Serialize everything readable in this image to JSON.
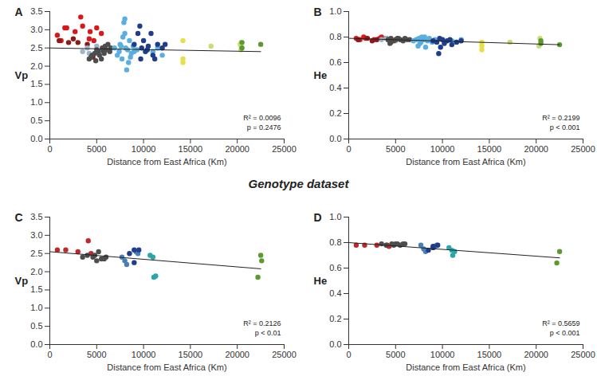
{
  "heading": "Genotype dataset",
  "chart_data": [
    {
      "type": "scatter",
      "title": "A",
      "xlabel": "Distance from East Africa (Km)",
      "ylabel": "Vp",
      "xlim": [
        0,
        25000
      ],
      "xticks": [
        0,
        5000,
        10000,
        15000,
        20000,
        25000
      ],
      "ylim": [
        0,
        3.5
      ],
      "yticks": [
        {
          "value": 0,
          "label": "0.0"
        },
        0.5,
        {
          "value": 1,
          "label": "1.0"
        },
        1.5,
        {
          "value": 2,
          "label": "2.0"
        },
        2.5,
        {
          "value": 3,
          "label": "3.0"
        },
        3.5
      ],
      "annotations": [
        "R² = 0.0096",
        "p = 0.2476"
      ],
      "trend_line": {
        "x": [
          0,
          22500
        ],
        "y": [
          2.5,
          2.4
        ]
      },
      "series": [
        {
          "color": "#d7191c",
          "x": [
            800,
            1200,
            1600,
            1800,
            2700,
            3300,
            3500,
            4200,
            4300,
            5000,
            5500,
            4700
          ],
          "values": [
            2.85,
            2.7,
            3.05,
            3.05,
            2.95,
            3.35,
            3.1,
            2.75,
            2.95,
            3.05,
            2.9,
            2.7
          ]
        },
        {
          "color": "#8b1a1a",
          "x": [
            1000,
            2000,
            2500,
            3000,
            4000,
            4500,
            4600
          ],
          "values": [
            2.7,
            2.65,
            2.75,
            2.65,
            2.6,
            2.3,
            2.25
          ]
        },
        {
          "color": "#9fb4c8",
          "x": [
            3500,
            4000,
            4200,
            5000
          ],
          "values": [
            2.4,
            2.5,
            2.35,
            2.55
          ]
        },
        {
          "color": "#4d4d4d",
          "x": [
            4200,
            4500,
            4800,
            5000,
            5200,
            5500,
            5600,
            5800,
            6000,
            6200,
            6400,
            4400,
            5300,
            5900,
            6500,
            4900,
            5700
          ],
          "values": [
            2.2,
            2.3,
            2.35,
            2.45,
            2.4,
            2.2,
            2.5,
            2.35,
            2.45,
            2.6,
            2.4,
            2.25,
            2.3,
            2.55,
            2.5,
            2.15,
            2.42
          ]
        },
        {
          "color": "#5aaee0",
          "x": [
            6900,
            7200,
            7400,
            7500,
            7700,
            7800,
            7900,
            8000,
            8100,
            8200,
            8300,
            8400,
            8500,
            8700,
            8900,
            9000,
            9300,
            7600,
            8600,
            8000,
            11000,
            11500,
            12000
          ],
          "values": [
            2.5,
            2.3,
            2.4,
            2.6,
            2.2,
            2.8,
            3.2,
            3.3,
            2.5,
            1.9,
            2.45,
            2.1,
            2.7,
            2.35,
            2.55,
            2.4,
            2.45,
            2.55,
            2.25,
            2.9,
            2.4,
            2.5,
            2.3
          ]
        },
        {
          "color": "#1f3d8a",
          "x": [
            9000,
            9400,
            9600,
            9800,
            10000,
            10200,
            10500,
            10800,
            11000,
            11200,
            11500,
            12000,
            12300,
            9700,
            10400
          ],
          "values": [
            2.6,
            2.9,
            3.1,
            2.5,
            2.7,
            2.4,
            2.55,
            2.9,
            2.3,
            2.2,
            2.6,
            2.5,
            2.6,
            2.2,
            2.45
          ]
        },
        {
          "color": "#e6e04c",
          "x": [
            14200,
            14200,
            14200
          ],
          "values": [
            2.7,
            2.2,
            2.1
          ]
        },
        {
          "color": "#c9dc7a",
          "x": [
            17200,
            20300,
            20400,
            20400,
            20400
          ],
          "values": [
            2.55,
            2.6,
            2.65,
            2.55,
            2.45
          ]
        },
        {
          "color": "#5b9a2e",
          "x": [
            20500,
            20500,
            22500
          ],
          "values": [
            2.65,
            2.5,
            2.6
          ]
        }
      ]
    },
    {
      "type": "scatter",
      "title": "B",
      "xlabel": "Distance from East Africa (Km)",
      "ylabel": "He",
      "xlim": [
        0,
        25000
      ],
      "xticks": [
        0,
        5000,
        10000,
        15000,
        20000,
        25000
      ],
      "ylim": [
        0,
        1
      ],
      "yticks": [
        {
          "value": 0,
          "label": "0.0"
        },
        0.2,
        0.4,
        0.6,
        0.8,
        {
          "value": 1,
          "label": "1.0"
        }
      ],
      "annotations": [
        "R² = 0.2199",
        "p < 0.001"
      ],
      "trend_line": {
        "x": [
          0,
          22500
        ],
        "y": [
          0.79,
          0.74
        ]
      },
      "series": [
        {
          "color": "#d7191c",
          "x": [
            800,
            1200,
            1600,
            1800,
            2700,
            3300,
            3500,
            4200
          ],
          "values": [
            0.79,
            0.78,
            0.8,
            0.79,
            0.78,
            0.79,
            0.8,
            0.78
          ]
        },
        {
          "color": "#8b1a1a",
          "x": [
            1000,
            2000,
            2500,
            3000,
            4000,
            4500
          ],
          "values": [
            0.78,
            0.79,
            0.77,
            0.78,
            0.79,
            0.76
          ]
        },
        {
          "color": "#9fb4c8",
          "x": [
            3500,
            4000,
            5000
          ],
          "values": [
            0.78,
            0.79,
            0.77
          ]
        },
        {
          "color": "#4d4d4d",
          "x": [
            4200,
            4500,
            4800,
            5000,
            5200,
            5500,
            5800,
            6000,
            6200,
            6500,
            4400,
            5300
          ],
          "values": [
            0.78,
            0.79,
            0.77,
            0.78,
            0.79,
            0.78,
            0.77,
            0.79,
            0.78,
            0.78,
            0.75,
            0.79
          ]
        },
        {
          "color": "#5aaee0",
          "x": [
            6900,
            7200,
            7400,
            7500,
            7700,
            7800,
            8000,
            8200,
            8400,
            8600,
            8900,
            9200,
            7600,
            8100,
            11000,
            11500,
            12000
          ],
          "values": [
            0.77,
            0.78,
            0.73,
            0.79,
            0.76,
            0.8,
            0.78,
            0.72,
            0.77,
            0.79,
            0.76,
            0.78,
            0.75,
            0.8,
            0.77,
            0.76,
            0.78
          ]
        },
        {
          "color": "#1f3d8a",
          "x": [
            9000,
            9400,
            9600,
            9800,
            10000,
            10200,
            10500,
            10800,
            11000,
            11500,
            12000,
            9700
          ],
          "values": [
            0.77,
            0.76,
            0.67,
            0.72,
            0.78,
            0.75,
            0.77,
            0.78,
            0.74,
            0.76,
            0.77,
            0.79
          ]
        },
        {
          "color": "#e6e04c",
          "x": [
            14200,
            14200,
            14200
          ],
          "values": [
            0.7,
            0.73,
            0.76
          ]
        },
        {
          "color": "#c9dc7a",
          "x": [
            17200,
            20300,
            20400
          ],
          "values": [
            0.76,
            0.73,
            0.79
          ]
        },
        {
          "color": "#5b9a2e",
          "x": [
            20500,
            20500,
            22500
          ],
          "values": [
            0.75,
            0.77,
            0.74
          ]
        }
      ]
    },
    {
      "type": "scatter",
      "title": "C",
      "xlabel": "Distance from East Africa (Km)",
      "ylabel": "Vp",
      "xlim": [
        0,
        25000
      ],
      "xticks": [
        0,
        5000,
        10000,
        15000,
        20000,
        25000
      ],
      "ylim": [
        0,
        3.5
      ],
      "yticks": [
        {
          "value": 0,
          "label": "0.0"
        },
        0.5,
        {
          "value": 1,
          "label": "1.0"
        },
        1.5,
        {
          "value": 2,
          "label": "2.0"
        },
        2.5,
        {
          "value": 3,
          "label": "3.0"
        },
        3.5
      ],
      "annotations": [
        "R² = 0.2126",
        "p < 0.01"
      ],
      "trend_line": {
        "x": [
          0,
          22500
        ],
        "y": [
          2.55,
          2.08
        ]
      },
      "series": [
        {
          "color": "#c0282a",
          "x": [
            800,
            1700,
            3000,
            4100,
            4400
          ],
          "values": [
            2.6,
            2.6,
            2.55,
            2.85,
            2.5
          ]
        },
        {
          "color": "#4d4d4d",
          "x": [
            3500,
            4000,
            4600,
            4800,
            5000,
            5200,
            5500,
            5800,
            6000
          ],
          "values": [
            2.4,
            2.45,
            2.4,
            2.45,
            2.3,
            2.55,
            2.35,
            2.35,
            2.4
          ]
        },
        {
          "color": "#4a7fb5",
          "x": [
            7700,
            8000,
            8200,
            9200,
            9400
          ],
          "values": [
            2.4,
            2.3,
            2.2,
            2.55,
            2.5
          ]
        },
        {
          "color": "#1f3d8a",
          "x": [
            8500,
            9000,
            9500,
            9000
          ],
          "values": [
            2.5,
            2.6,
            2.6,
            2.25
          ]
        },
        {
          "color": "#2aa6a6",
          "x": [
            10700,
            11000,
            11100,
            11300
          ],
          "values": [
            2.45,
            2.4,
            1.85,
            1.88
          ]
        },
        {
          "color": "#5b9a2e",
          "x": [
            22200,
            22500,
            22600
          ],
          "values": [
            1.85,
            2.45,
            2.3
          ]
        }
      ]
    },
    {
      "type": "scatter",
      "title": "D",
      "xlabel": "Distance from East Africa (Km)",
      "ylabel": "He",
      "xlim": [
        0,
        25000
      ],
      "xticks": [
        0,
        5000,
        10000,
        15000,
        20000,
        25000
      ],
      "ylim": [
        0,
        1
      ],
      "yticks": [
        {
          "value": 0,
          "label": "0.0"
        },
        0.2,
        0.4,
        0.6,
        0.8,
        {
          "value": 1,
          "label": "1.0"
        }
      ],
      "annotations": [
        "R² = 0.5659",
        "p < 0.001"
      ],
      "trend_line": {
        "x": [
          0,
          22500
        ],
        "y": [
          0.8,
          0.68
        ]
      },
      "series": [
        {
          "color": "#c0282a",
          "x": [
            800,
            1700,
            3000,
            4100,
            4300
          ],
          "values": [
            0.78,
            0.78,
            0.78,
            0.78,
            0.77
          ]
        },
        {
          "color": "#4d4d4d",
          "x": [
            3500,
            4000,
            4600,
            4800,
            5000,
            5200,
            5500,
            5800,
            6000
          ],
          "values": [
            0.79,
            0.78,
            0.79,
            0.78,
            0.79,
            0.79,
            0.78,
            0.79,
            0.79
          ]
        },
        {
          "color": "#4a7fb5",
          "x": [
            7700,
            8000,
            8200,
            9200,
            9400
          ],
          "values": [
            0.78,
            0.75,
            0.73,
            0.77,
            0.78
          ]
        },
        {
          "color": "#1f3d8a",
          "x": [
            8500,
            9000,
            9500,
            9000
          ],
          "values": [
            0.74,
            0.76,
            0.78,
            0.77
          ]
        },
        {
          "color": "#2aa6a6",
          "x": [
            10700,
            11000,
            11100,
            11300
          ],
          "values": [
            0.76,
            0.74,
            0.7,
            0.73
          ]
        },
        {
          "color": "#5b9a2e",
          "x": [
            22200,
            22500
          ],
          "values": [
            0.64,
            0.73
          ]
        }
      ]
    }
  ]
}
